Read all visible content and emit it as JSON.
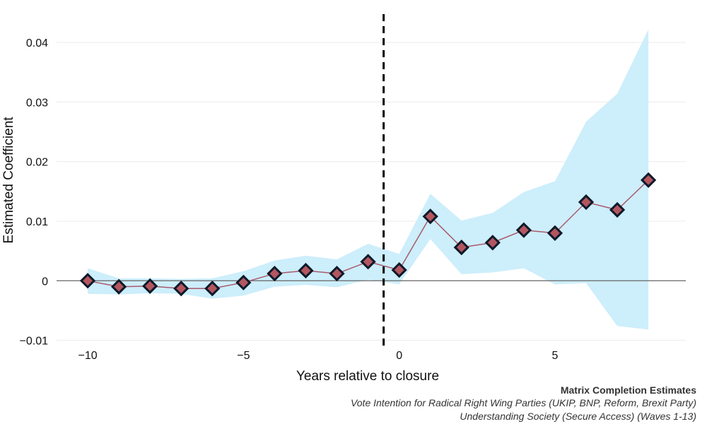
{
  "chart_data": {
    "type": "line",
    "title": "",
    "xlabel": "Years relative to closure",
    "ylabel": "Estimated Coefficient",
    "xlim": [
      -11,
      9.2
    ],
    "ylim": [
      -0.011,
      0.045
    ],
    "x_ticks": [
      -10,
      -5,
      0,
      5
    ],
    "x_tick_labels": [
      "−10",
      "−5",
      "0",
      "5"
    ],
    "y_ticks": [
      -0.01,
      0,
      0.01,
      0.02,
      0.03,
      0.04
    ],
    "y_tick_labels": [
      "−0.01",
      "0",
      "0.01",
      "0.02",
      "0.03",
      "0.04"
    ],
    "grid": true,
    "vline_x": -0.5,
    "zero_line": 0,
    "series": [
      {
        "x": [
          -10,
          -9,
          -8,
          -7,
          -6,
          -5,
          -4,
          -3,
          -2,
          -1,
          0,
          1,
          2,
          3,
          4,
          5,
          6,
          7,
          8
        ],
        "estimate": [
          0.0,
          -0.001,
          -0.0009,
          -0.0013,
          -0.0013,
          -0.0003,
          0.0012,
          0.0017,
          0.0012,
          0.0032,
          0.0018,
          0.0108,
          0.0056,
          0.0064,
          0.0085,
          0.008,
          0.0132,
          0.0119,
          0.0169
        ],
        "lower": [
          -0.0022,
          -0.0023,
          -0.0021,
          -0.0022,
          -0.003,
          -0.0025,
          -0.001,
          -0.0007,
          -0.0011,
          0.0002,
          -0.0006,
          0.007,
          0.0011,
          0.0014,
          0.0021,
          -0.0006,
          -0.0004,
          -0.0076,
          -0.0082
        ],
        "upper": [
          0.0021,
          0.0004,
          0.0004,
          0.0003,
          0.0004,
          0.0016,
          0.0034,
          0.0042,
          0.0036,
          0.0062,
          0.0045,
          0.0146,
          0.0101,
          0.0114,
          0.0149,
          0.0167,
          0.0267,
          0.0314,
          0.0422
        ]
      }
    ]
  },
  "colors": {
    "band": "#cdeefb",
    "line": "#a85a6c",
    "marker_fill": "#b4565f",
    "marker_stroke": "#0d1a2b",
    "zero_line": "#666666",
    "grid": "#ececec",
    "vline": "#000000"
  },
  "caption": {
    "line1": "Matrix Completion Estimates",
    "line2": "Vote Intention for Radical Right Wing Parties (UKIP, BNP, Reform, Brexit Party)",
    "line3": "Understanding Society (Secure Access) (Waves 1-13)"
  }
}
